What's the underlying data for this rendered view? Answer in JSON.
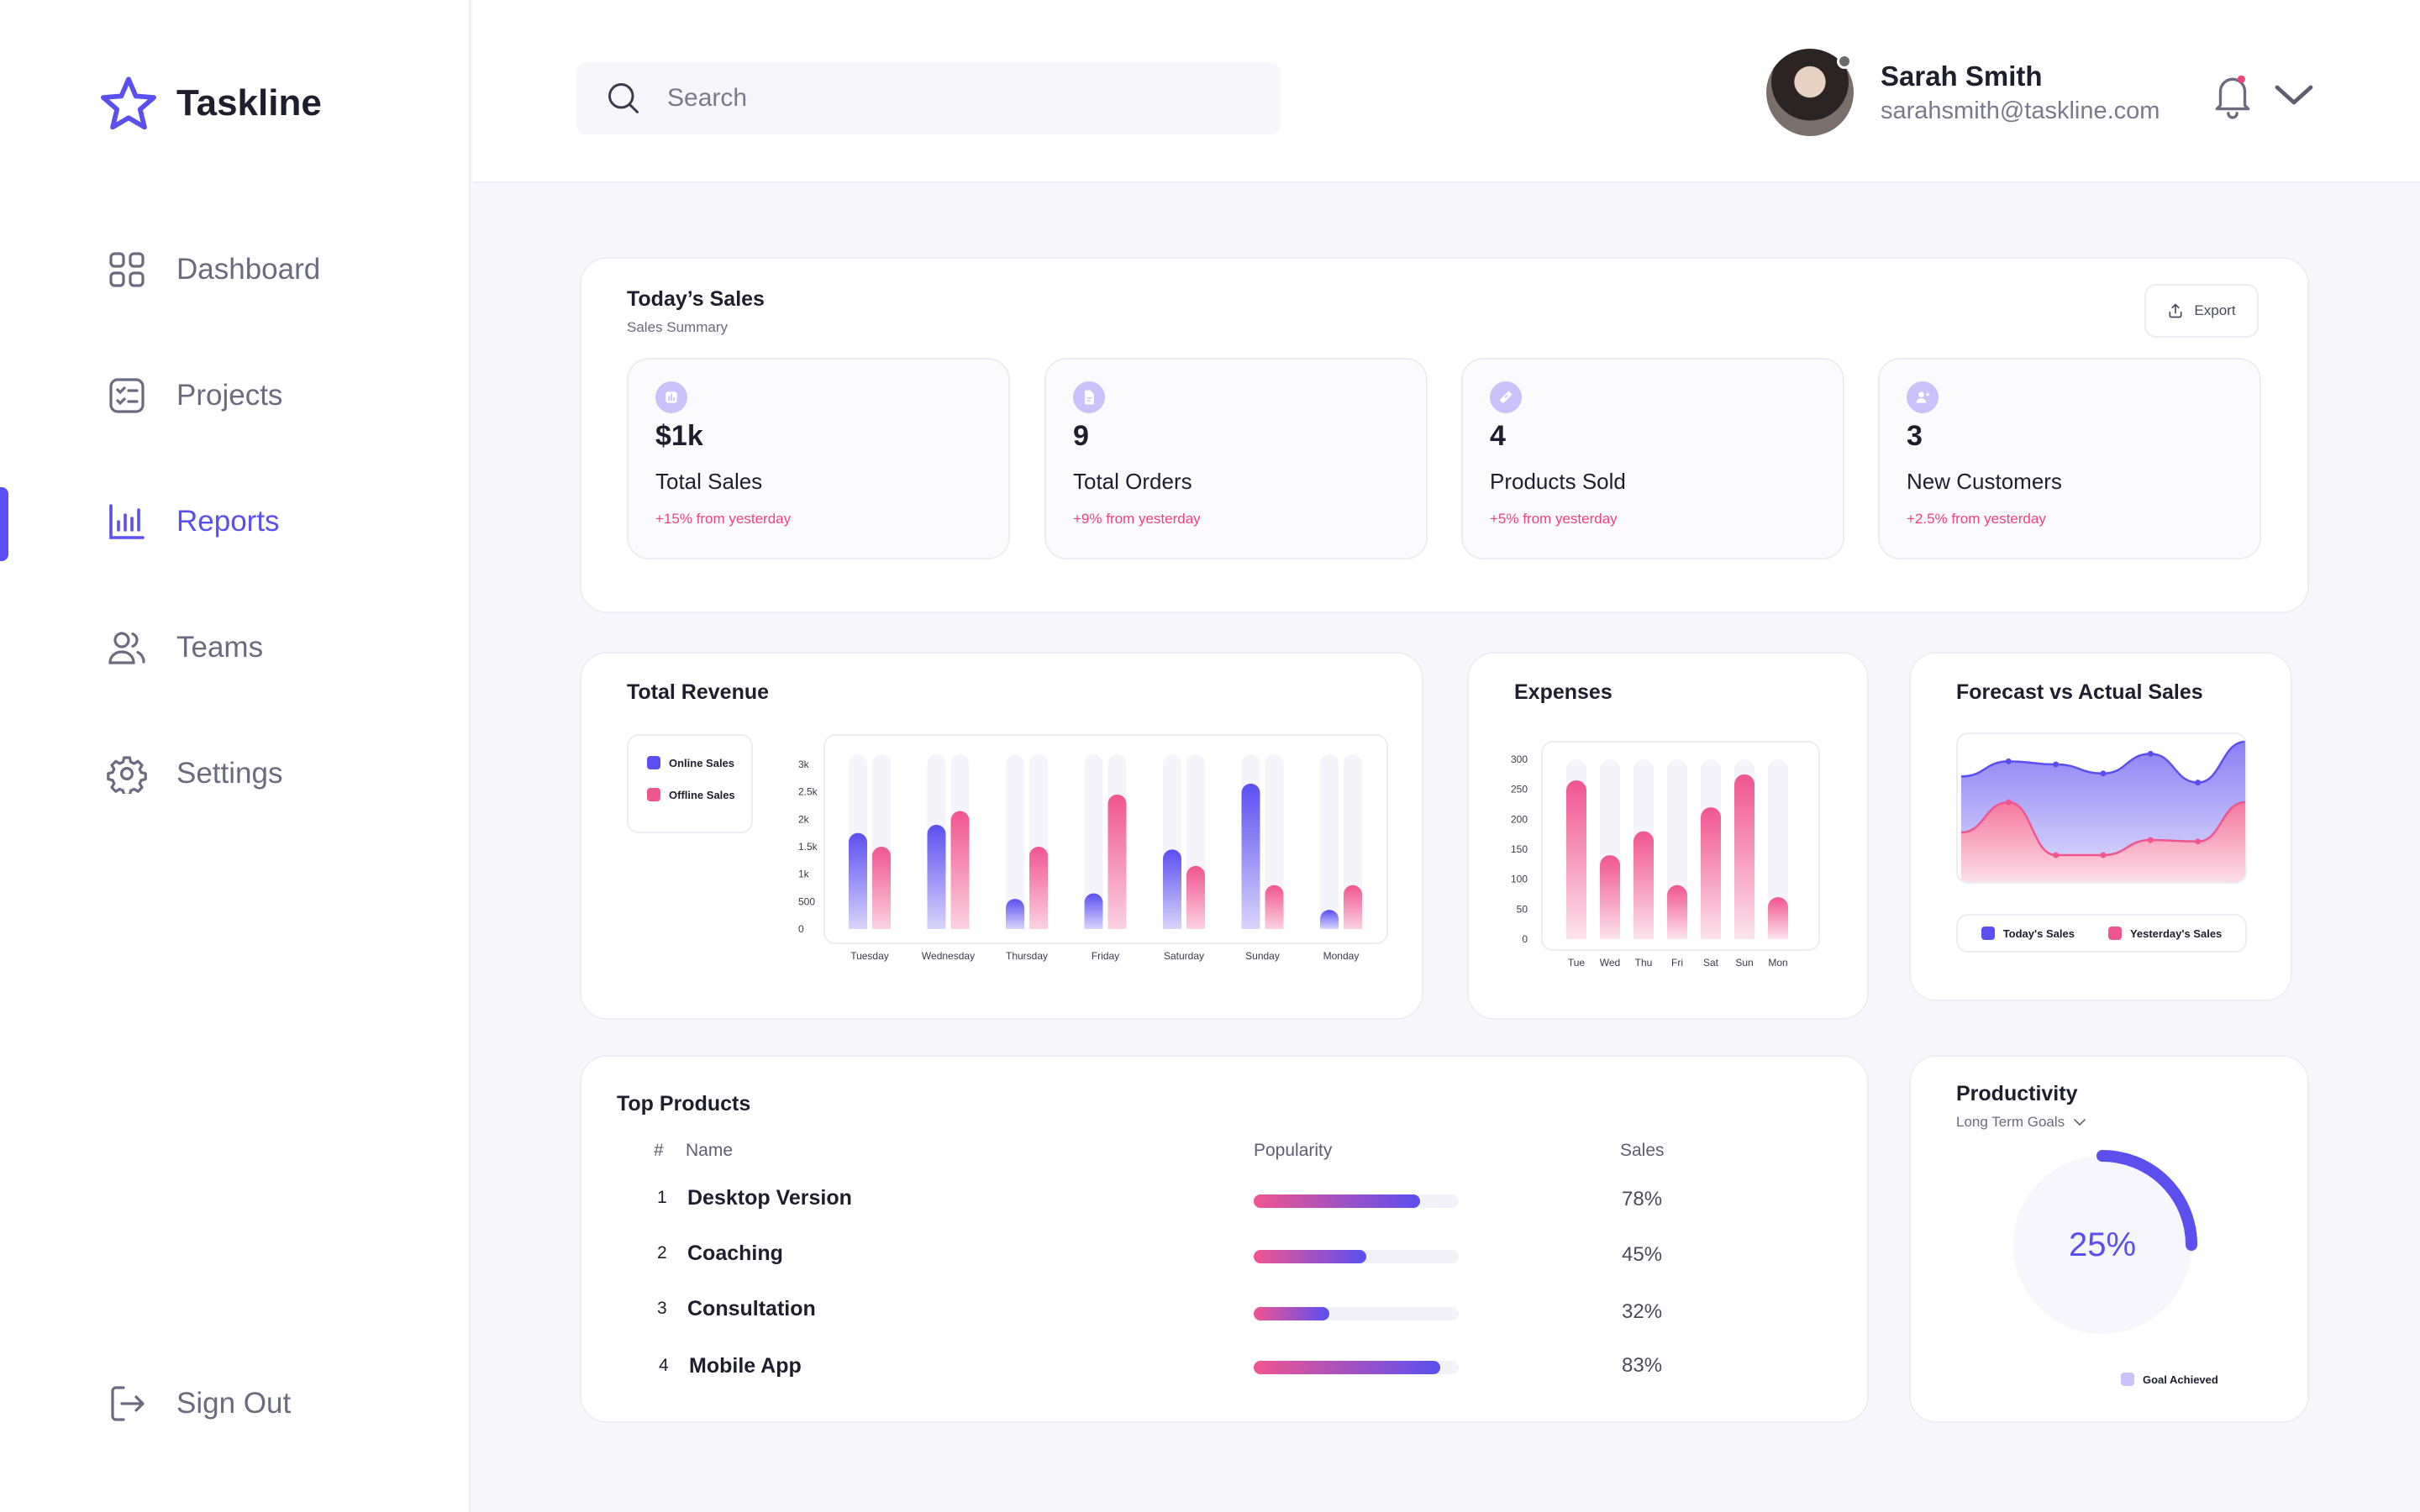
{
  "app": {
    "name": "Taskline"
  },
  "sidebar": {
    "items": [
      {
        "label": "Dashboard",
        "icon": "grid-icon",
        "active": false
      },
      {
        "label": "Projects",
        "icon": "checklist-icon",
        "active": false
      },
      {
        "label": "Reports",
        "icon": "bar-chart-icon",
        "active": true
      },
      {
        "label": "Teams",
        "icon": "users-icon",
        "active": false
      },
      {
        "label": "Settings",
        "icon": "gear-icon",
        "active": false
      }
    ],
    "signout": "Sign Out"
  },
  "header": {
    "search_placeholder": "Search",
    "user": {
      "name": "Sarah Smith",
      "email": "sarahsmith@taskline.com"
    }
  },
  "colors": {
    "accent": "#5b4ff0",
    "pink": "#f0437a",
    "online": "#5b4ff0",
    "offline": "#f0558f"
  },
  "todays_sales": {
    "title": "Today’s Sales",
    "subtitle": "Sales Summary",
    "export": "Export",
    "stats": [
      {
        "value": "$1k",
        "label": "Total Sales",
        "change": "+15% from yesterday",
        "icon": "chart-icon"
      },
      {
        "value": "9",
        "label": "Total Orders",
        "change": "+9% from yesterday",
        "icon": "document-icon"
      },
      {
        "value": "4",
        "label": "Products Sold",
        "change": "+5% from yesterday",
        "icon": "tag-icon"
      },
      {
        "value": "3",
        "label": "New Customers",
        "change": "+2.5% from yesterday",
        "icon": "user-add-icon"
      }
    ]
  },
  "total_revenue": {
    "title": "Total Revenue"
  },
  "expenses": {
    "title": "Expenses"
  },
  "forecast": {
    "title": "Forecast vs Actual Sales"
  },
  "top_products": {
    "title": "Top Products",
    "headers": {
      "num": "#",
      "name": "Name",
      "popularity": "Popularity",
      "sales": "Sales"
    },
    "rows": [
      {
        "num": "1",
        "name": "Desktop Version",
        "popularity": 0.81,
        "sales": "78%"
      },
      {
        "num": "2",
        "name": "Coaching",
        "popularity": 0.55,
        "sales": "45%"
      },
      {
        "num": "3",
        "name": "Consultation",
        "popularity": 0.37,
        "sales": "32%"
      },
      {
        "num": "4",
        "name": "Mobile App",
        "popularity": 0.91,
        "sales": "83%"
      }
    ]
  },
  "productivity": {
    "title": "Productivity",
    "filter": "Long Term Goals",
    "value": "25%",
    "fraction": 0.25,
    "legend": "Goal Achieved"
  },
  "chart_data": [
    {
      "type": "bar",
      "title": "Total Revenue",
      "categories": [
        "Tuesday",
        "Wednesday",
        "Thursday",
        "Friday",
        "Saturday",
        "Sunday",
        "Monday"
      ],
      "series": [
        {
          "name": "Online Sales",
          "values": [
            1750,
            1900,
            550,
            650,
            1450,
            2650,
            350
          ]
        },
        {
          "name": "Offline Sales",
          "values": [
            1500,
            2150,
            1500,
            2450,
            1150,
            800,
            800
          ]
        }
      ],
      "yticks": [
        "3k",
        "2.5k",
        "2k",
        "1.5k",
        "1k",
        "500",
        "0"
      ],
      "ylim": [
        0,
        3000
      ],
      "legend": "left"
    },
    {
      "type": "bar",
      "title": "Expenses",
      "categories": [
        "Tue",
        "Wed",
        "Thu",
        "Fri",
        "Sat",
        "Sun",
        "Mon"
      ],
      "series": [
        {
          "name": "Expenses",
          "values": [
            265,
            140,
            180,
            90,
            220,
            275,
            70
          ]
        }
      ],
      "yticks": [
        "300",
        "250",
        "200",
        "150",
        "100",
        "50",
        "0"
      ],
      "ylim": [
        0,
        300
      ]
    },
    {
      "type": "area",
      "title": "Forecast vs Actual Sales",
      "x": [
        0,
        1,
        2,
        3,
        4,
        5,
        6
      ],
      "series": [
        {
          "name": "Today's Sales",
          "values": [
            0.72,
            0.82,
            0.8,
            0.74,
            0.87,
            0.68,
            0.95
          ]
        },
        {
          "name": "Yesterday's Sales",
          "values": [
            0.35,
            0.55,
            0.2,
            0.2,
            0.3,
            0.29,
            0.55
          ]
        }
      ],
      "ylim": [
        0,
        1
      ],
      "legend": "bottom"
    }
  ]
}
